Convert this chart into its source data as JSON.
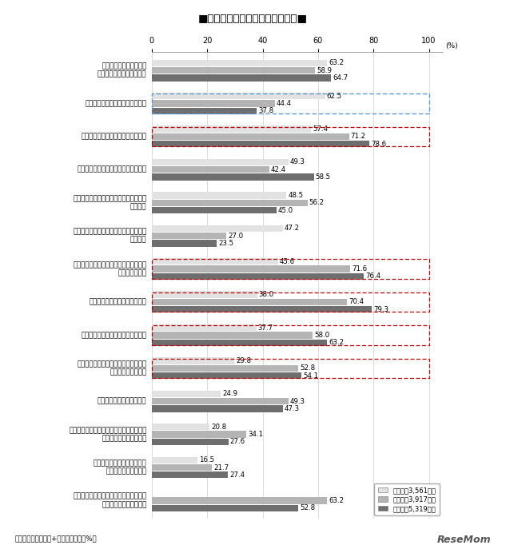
{
  "title": "■勉強の取り組み（学校段階別）■",
  "x_ticks": [
    0,
    20,
    40,
    60,
    80,
    100
  ],
  "colors": {
    "elementary": "#e2e2e2",
    "middle": "#b4b4b4",
    "high": "#6e6e6e"
  },
  "legend_labels": [
    "小学生（3,561名）",
    "中学生（3,917名）",
    "高校生（5,319名）"
  ],
  "categories": [
    {
      "label": "わからないことがあると\n「もっと知りたい」と思う",
      "values": [
        63.2,
        58.9,
        64.7
      ],
      "box": null
    },
    {
      "label": "テストで間違えた問題をやり直す",
      "values": [
        62.5,
        44.4,
        37.8
      ],
      "box": "blue"
    },
    {
      "label": "問題を解いた後は答え合わせをする",
      "values": [
        57.4,
        71.2,
        78.6
      ],
      "box": "red"
    },
    {
      "label": "親に言われなくても自分から勉強する",
      "values": [
        49.3,
        42.4,
        58.5
      ],
      "box": null
    },
    {
      "label": "学校の先生が自分をどう評価しているか\n気になる",
      "values": [
        48.5,
        56.2,
        45.0
      ],
      "box": null
    },
    {
      "label": "他にやりたいことがあってもがまんして\n勉強する",
      "values": [
        47.2,
        27.0,
        23.5
      ],
      "box": null
    },
    {
      "label": "今までにもっときちんと勉強しておけば\nよかったと思う",
      "values": [
        45.6,
        71.6,
        76.4
      ],
      "box": "red"
    },
    {
      "label": "上手な勉強の仕方がわからない",
      "values": [
        38.0,
        70.4,
        79.3
      ],
      "box": "red"
    },
    {
      "label": "勉強しようという気持ちがわかない",
      "values": [
        37.7,
        58.0,
        63.2
      ],
      "box": "red"
    },
    {
      "label": "どうしてこんなことを勉強しなければ\nいけないのかと思う",
      "values": [
        29.8,
        52.8,
        54.1
      ],
      "box": "red"
    },
    {
      "label": "受験を目標にして勉強する",
      "values": [
        24.9,
        49.3,
        47.3
      ],
      "box": null
    },
    {
      "label": "資格試験や検定試験（英検、漢検など）を\n受けるための勉強をする",
      "values": [
        20.8,
        34.1,
        27.6
      ],
      "box": null
    },
    {
      "label": "わからないことがあるとき、\n質問できる人がいない",
      "values": [
        16.5,
        21.7,
        27.4
      ],
      "box": null
    },
    {
      "label": "定期テストはしっかり準備をしてのぞむ\n【中学生・高校生のみ】",
      "values": [
        null,
        63.2,
        52.8
      ],
      "box": null
    }
  ],
  "note": "注）「とてもそう」+「まあそう」の%。",
  "background_color": "#ffffff",
  "resemom_text": "ReseMom"
}
